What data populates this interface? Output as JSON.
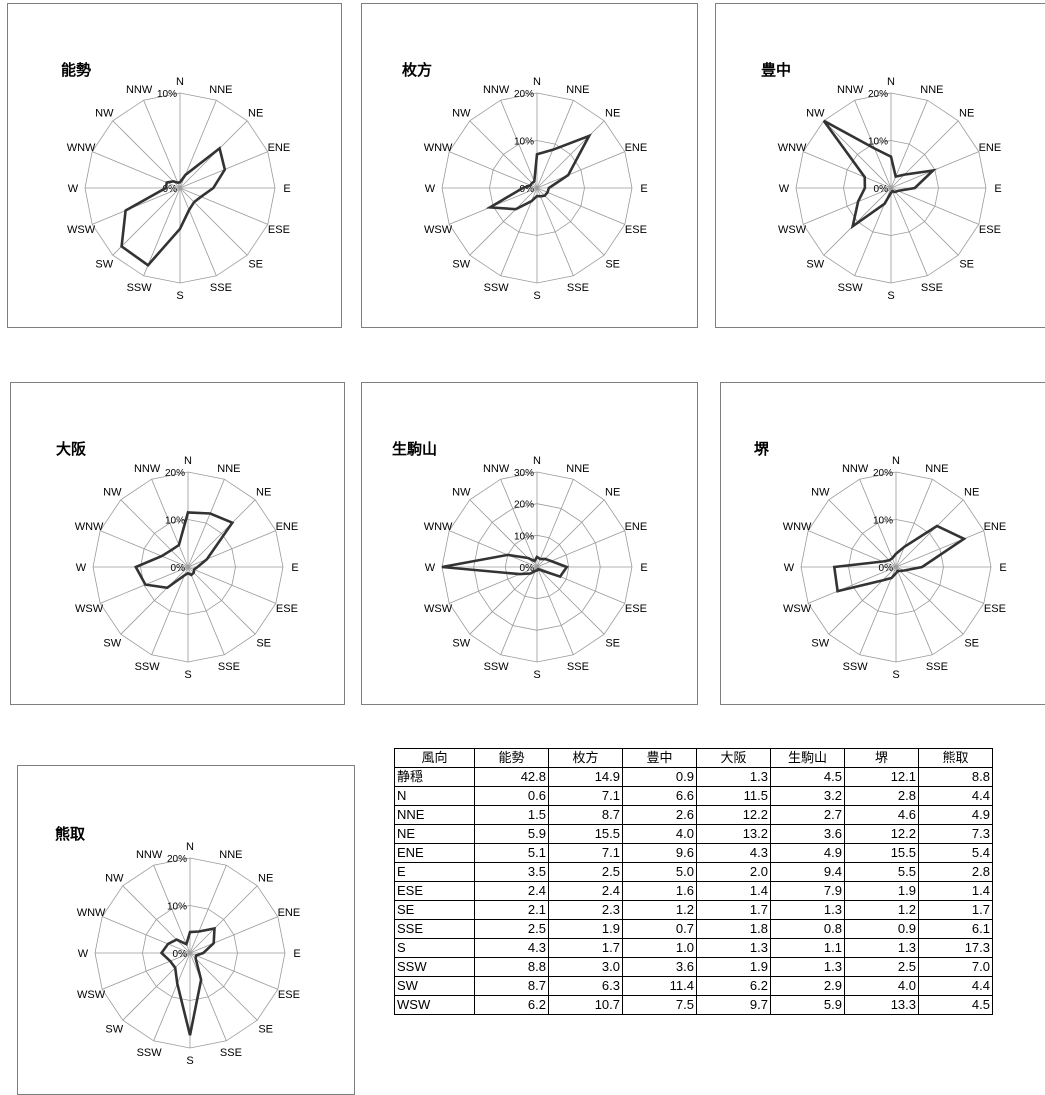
{
  "directions": [
    "N",
    "NNE",
    "NE",
    "ENE",
    "E",
    "ESE",
    "SE",
    "SSE",
    "S",
    "SSW",
    "SW",
    "WSW",
    "W",
    "WNW",
    "NW",
    "NNW"
  ],
  "chart_data": [
    {
      "type": "radar",
      "title": "能勢",
      "rmax": 10,
      "rings": [
        0,
        10
      ],
      "ring_labels": [
        "0%",
        "10%"
      ],
      "values": [
        0.6,
        1.5,
        5.9,
        5.1,
        3.5,
        2.4,
        2.1,
        2.5,
        4.3,
        8.8,
        8.7,
        6.2,
        1.5,
        1.5,
        1.0,
        0.6
      ]
    },
    {
      "type": "radar",
      "title": "枚方",
      "rmax": 20,
      "rings": [
        0,
        10,
        20
      ],
      "ring_labels": [
        "0%",
        "10%",
        "20%"
      ],
      "values": [
        7.1,
        8.7,
        15.5,
        7.1,
        2.5,
        2.4,
        2.3,
        1.9,
        1.7,
        3.0,
        6.3,
        10.7,
        3.0,
        1.5,
        1.5,
        1.5
      ]
    },
    {
      "type": "radar",
      "title": "豊中",
      "rmax": 20,
      "rings": [
        0,
        10,
        20
      ],
      "ring_labels": [
        "0%",
        "10%",
        "20%"
      ],
      "values": [
        6.6,
        2.6,
        4.0,
        9.6,
        5.0,
        1.6,
        1.2,
        0.7,
        1.0,
        3.6,
        11.4,
        7.5,
        5.5,
        6.0,
        20.0,
        9.0
      ]
    },
    {
      "type": "radar",
      "title": "大阪",
      "rmax": 20,
      "rings": [
        0,
        10,
        20
      ],
      "ring_labels": [
        "0%",
        "10%",
        "20%"
      ],
      "values": [
        11.5,
        12.2,
        13.2,
        4.3,
        2.0,
        1.4,
        1.7,
        1.8,
        1.3,
        1.9,
        6.2,
        9.7,
        11.0,
        6.0,
        5.0,
        5.0
      ]
    },
    {
      "type": "radar",
      "title": "生駒山",
      "rmax": 30,
      "rings": [
        0,
        10,
        20,
        30
      ],
      "ring_labels": [
        "0%",
        "10%",
        "20%",
        "30%"
      ],
      "values": [
        3.2,
        2.7,
        3.6,
        4.9,
        9.4,
        7.9,
        1.3,
        0.8,
        1.1,
        1.3,
        2.9,
        5.9,
        31.0,
        10.0,
        4.0,
        2.0
      ]
    },
    {
      "type": "radar",
      "title": "堺",
      "rmax": 20,
      "rings": [
        0,
        10,
        20
      ],
      "ring_labels": [
        "0%",
        "10%",
        "20%"
      ],
      "values": [
        2.8,
        4.6,
        12.2,
        15.5,
        5.5,
        1.9,
        1.2,
        0.9,
        1.3,
        2.5,
        4.0,
        13.3,
        13.0,
        3.0,
        2.0,
        2.0
      ]
    },
    {
      "type": "radar",
      "title": "熊取",
      "rmax": 20,
      "rings": [
        0,
        10,
        20
      ],
      "ring_labels": [
        "0%",
        "10%",
        "20%"
      ],
      "values": [
        4.4,
        4.9,
        7.3,
        5.4,
        2.8,
        1.4,
        1.7,
        6.1,
        17.3,
        7.0,
        4.4,
        4.5,
        6.0,
        5.0,
        4.0,
        2.0
      ]
    }
  ],
  "table": {
    "headers": [
      "風向",
      "能勢",
      "枚方",
      "豊中",
      "大阪",
      "生駒山",
      "堺",
      "熊取"
    ],
    "rows": [
      [
        "静穏",
        "42.8",
        "14.9",
        "0.9",
        "1.3",
        "4.5",
        "12.1",
        "8.8"
      ],
      [
        "N",
        "0.6",
        "7.1",
        "6.6",
        "11.5",
        "3.2",
        "2.8",
        "4.4"
      ],
      [
        "NNE",
        "1.5",
        "8.7",
        "2.6",
        "12.2",
        "2.7",
        "4.6",
        "4.9"
      ],
      [
        "NE",
        "5.9",
        "15.5",
        "4.0",
        "13.2",
        "3.6",
        "12.2",
        "7.3"
      ],
      [
        "ENE",
        "5.1",
        "7.1",
        "9.6",
        "4.3",
        "4.9",
        "15.5",
        "5.4"
      ],
      [
        "E",
        "3.5",
        "2.5",
        "5.0",
        "2.0",
        "9.4",
        "5.5",
        "2.8"
      ],
      [
        "ESE",
        "2.4",
        "2.4",
        "1.6",
        "1.4",
        "7.9",
        "1.9",
        "1.4"
      ],
      [
        "SE",
        "2.1",
        "2.3",
        "1.2",
        "1.7",
        "1.3",
        "1.2",
        "1.7"
      ],
      [
        "SSE",
        "2.5",
        "1.9",
        "0.7",
        "1.8",
        "0.8",
        "0.9",
        "6.1"
      ],
      [
        "S",
        "4.3",
        "1.7",
        "1.0",
        "1.3",
        "1.1",
        "1.3",
        "17.3"
      ],
      [
        "SSW",
        "8.8",
        "3.0",
        "3.6",
        "1.9",
        "1.3",
        "2.5",
        "7.0"
      ],
      [
        "SW",
        "8.7",
        "6.3",
        "11.4",
        "6.2",
        "2.9",
        "4.0",
        "4.4"
      ],
      [
        "WSW",
        "6.2",
        "10.7",
        "7.5",
        "9.7",
        "5.9",
        "13.3",
        "4.5"
      ]
    ]
  }
}
